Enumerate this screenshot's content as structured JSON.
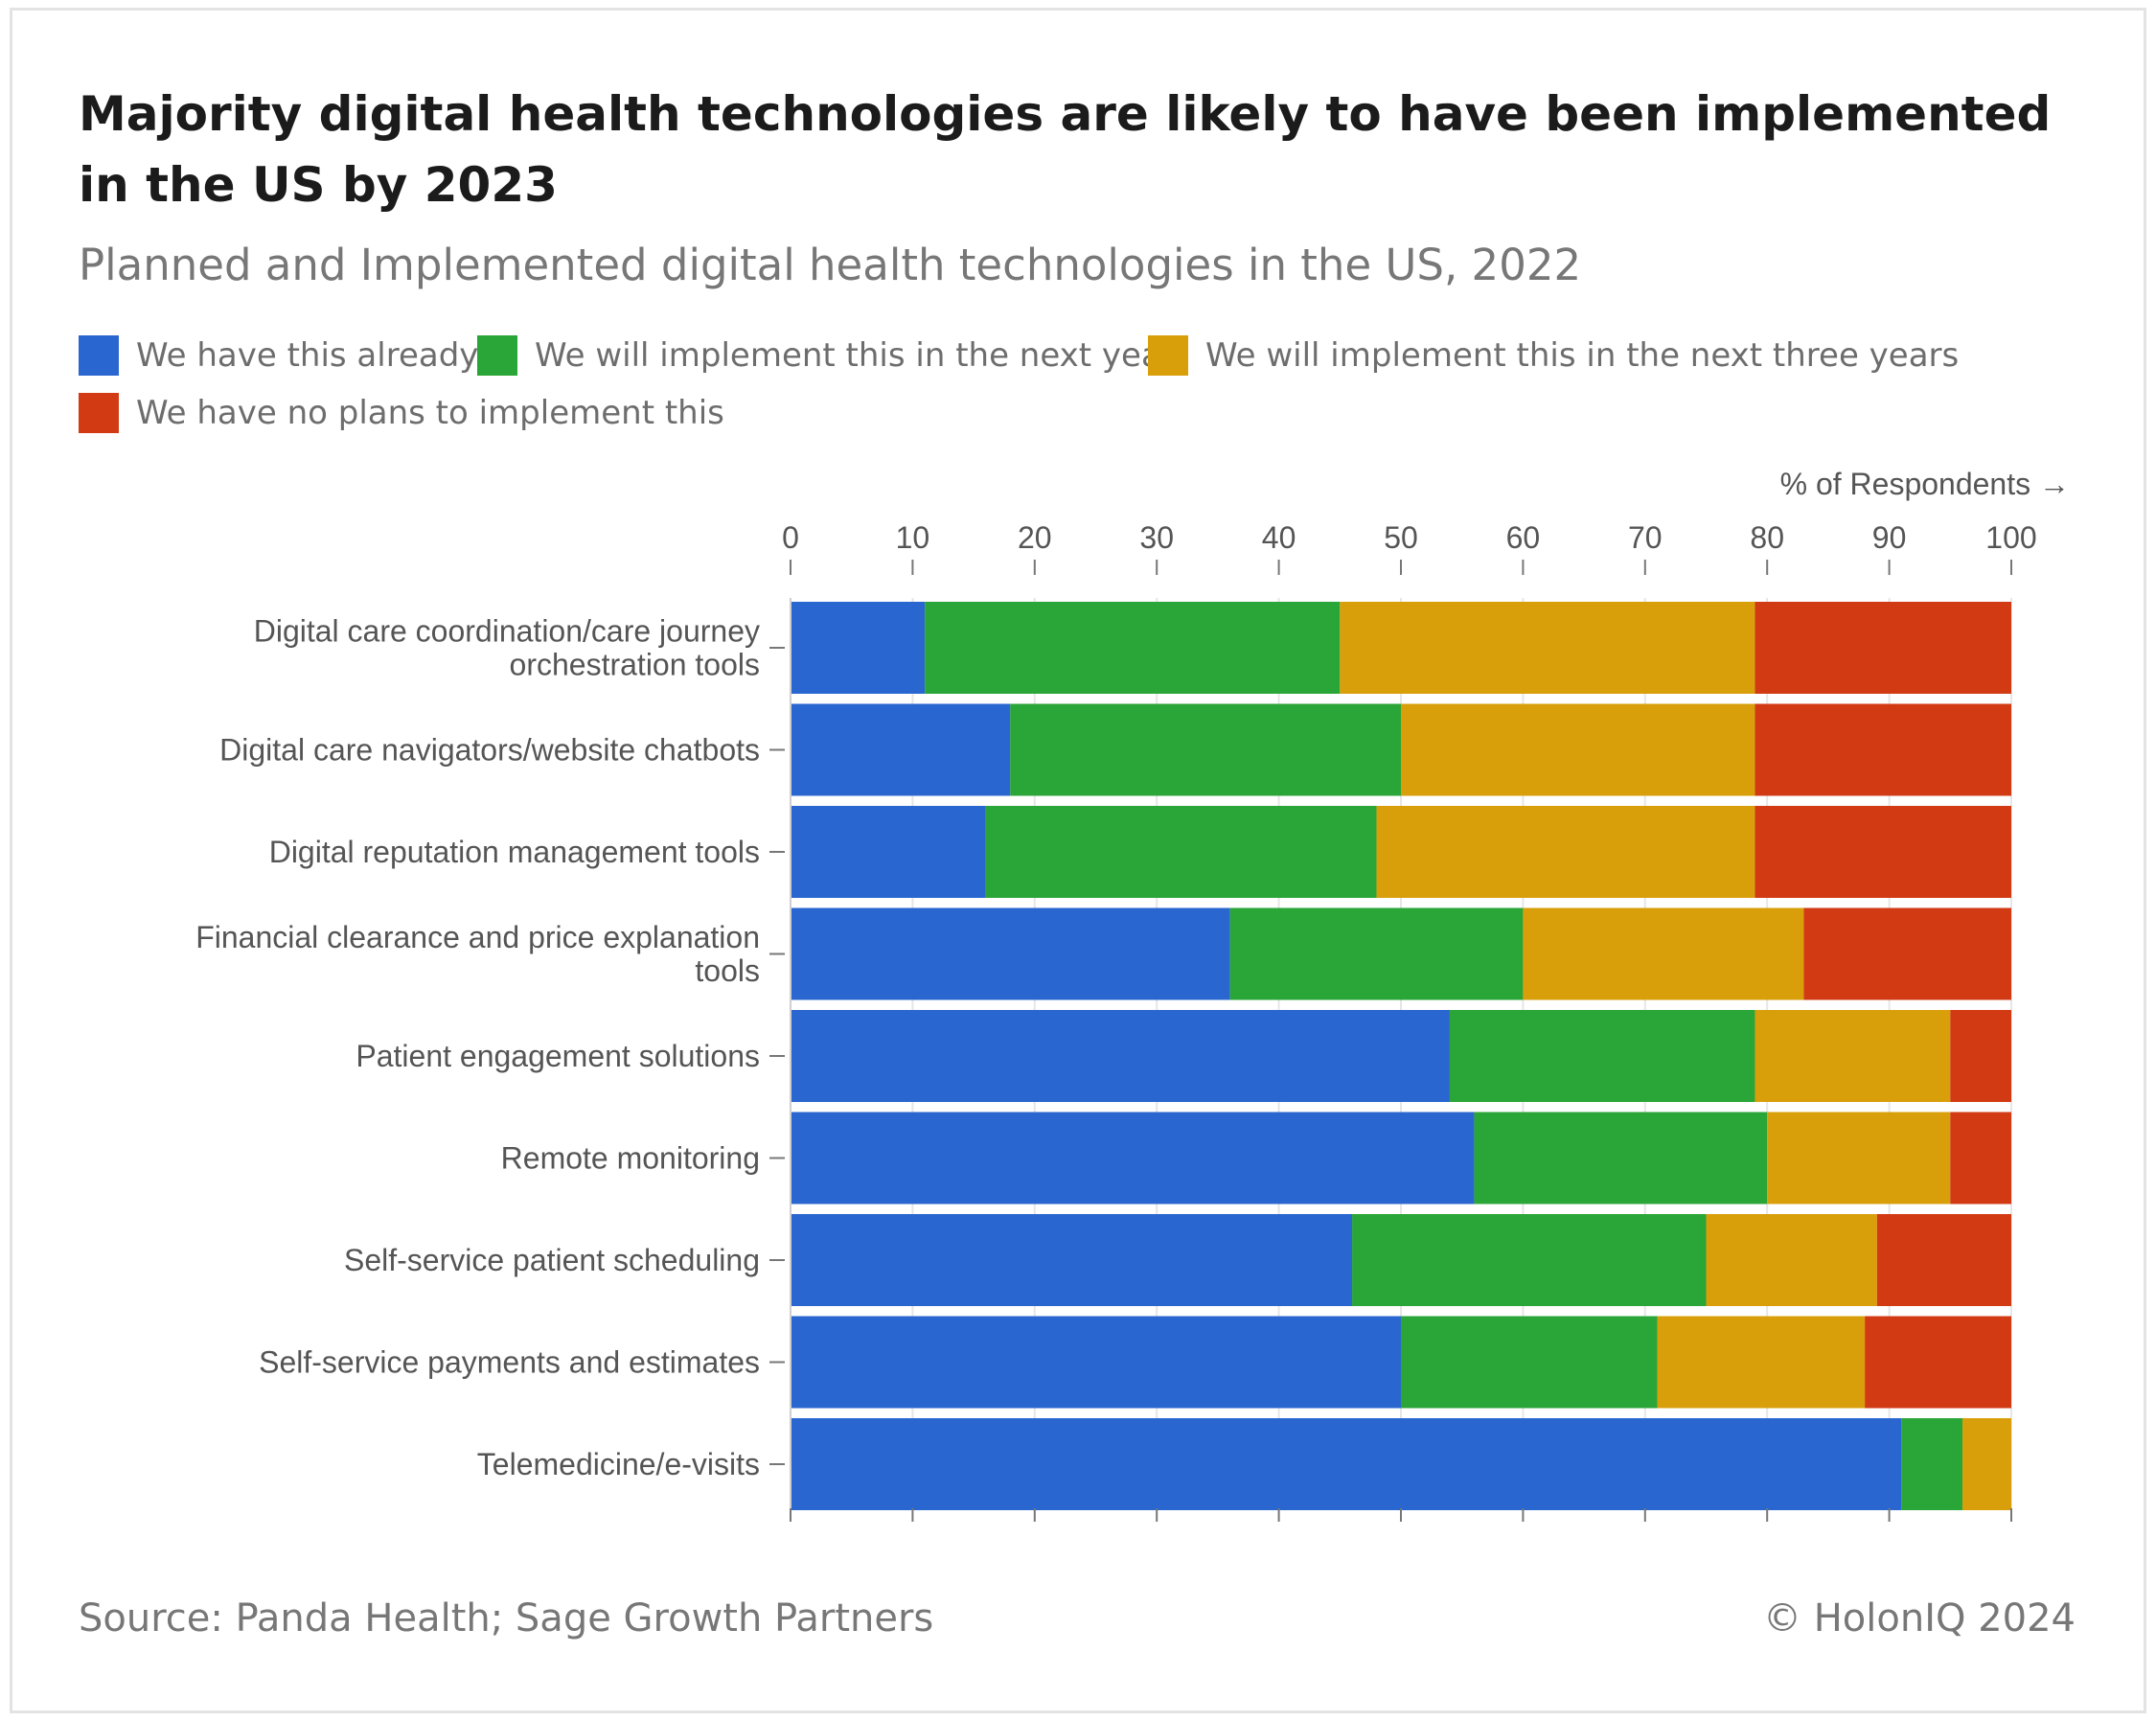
{
  "title": "Majority digital health technologies are likely to have been implemented in the US by 2023",
  "subtitle": "Planned and Implemented digital health technologies in the US, 2022",
  "footer": {
    "source": "Source: Panda Health; Sage Growth Partners",
    "credit": "© HolonIQ 2024"
  },
  "colors": {
    "already": "#2a66cf",
    "next_year": "#2aa537",
    "three_years": "#d89f0a",
    "no_plans": "#d23a14"
  },
  "chart_data": {
    "type": "bar",
    "orientation": "horizontal",
    "stacked": true,
    "title": "Planned and Implemented digital health technologies in the US, 2022",
    "xlabel": "% of Respondents →",
    "ylabel": "",
    "xlim": [
      0,
      100
    ],
    "xticks": [
      0,
      10,
      20,
      30,
      40,
      50,
      60,
      70,
      80,
      90,
      100
    ],
    "grid": true,
    "legend_position": "top-left",
    "categories": [
      [
        "Digital care coordination/care journey",
        "orchestration tools"
      ],
      [
        "Digital care navigators/website chatbots"
      ],
      [
        "Digital reputation management tools"
      ],
      [
        "Financial clearance and price explanation",
        "tools"
      ],
      [
        "Patient engagement solutions"
      ],
      [
        "Remote monitoring"
      ],
      [
        "Self-service patient scheduling"
      ],
      [
        "Self-service payments and estimates"
      ],
      [
        "Telemedicine/e-visits"
      ]
    ],
    "series": [
      {
        "key": "already",
        "name": "We have this already",
        "color": "#2a66cf",
        "values": [
          11,
          18,
          16,
          36,
          54,
          56,
          46,
          50,
          91
        ]
      },
      {
        "key": "next_year",
        "name": "We will implement this in the next year",
        "color": "#2aa537",
        "values": [
          34,
          32,
          32,
          24,
          25,
          24,
          29,
          21,
          5
        ]
      },
      {
        "key": "three_years",
        "name": "We will implement this in the next three years",
        "color": "#d89f0a",
        "values": [
          34,
          29,
          31,
          23,
          16,
          15,
          14,
          17,
          4
        ]
      },
      {
        "key": "no_plans",
        "name": "We have no plans to implement this",
        "color": "#d23a14",
        "values": [
          21,
          21,
          21,
          17,
          5,
          5,
          11,
          12,
          0
        ]
      }
    ]
  }
}
